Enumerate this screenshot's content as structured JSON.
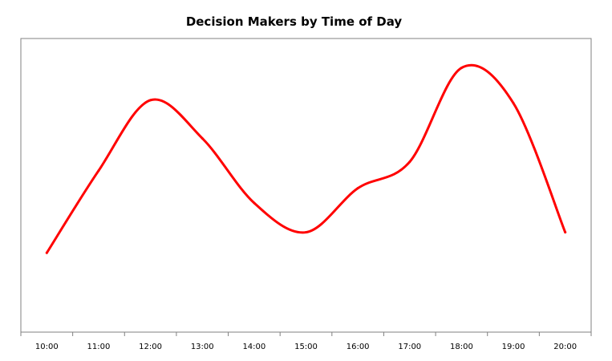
{
  "chart_data": {
    "type": "line",
    "title": "Decision Makers by Time of Day",
    "xlabel": "",
    "ylabel": "",
    "categories": [
      "10:00",
      "11:00",
      "12:00",
      "13:00",
      "14:00",
      "15:00",
      "16:00",
      "17:00",
      "18:00",
      "19:00",
      "20:00"
    ],
    "series": [
      {
        "values": [
          27,
          55,
          79,
          66,
          44,
          34,
          49,
          58,
          90,
          78,
          34
        ],
        "color": "#ff0000"
      }
    ],
    "ylim": [
      0,
      100
    ],
    "grid": false,
    "legend": "none",
    "smooth": true
  }
}
